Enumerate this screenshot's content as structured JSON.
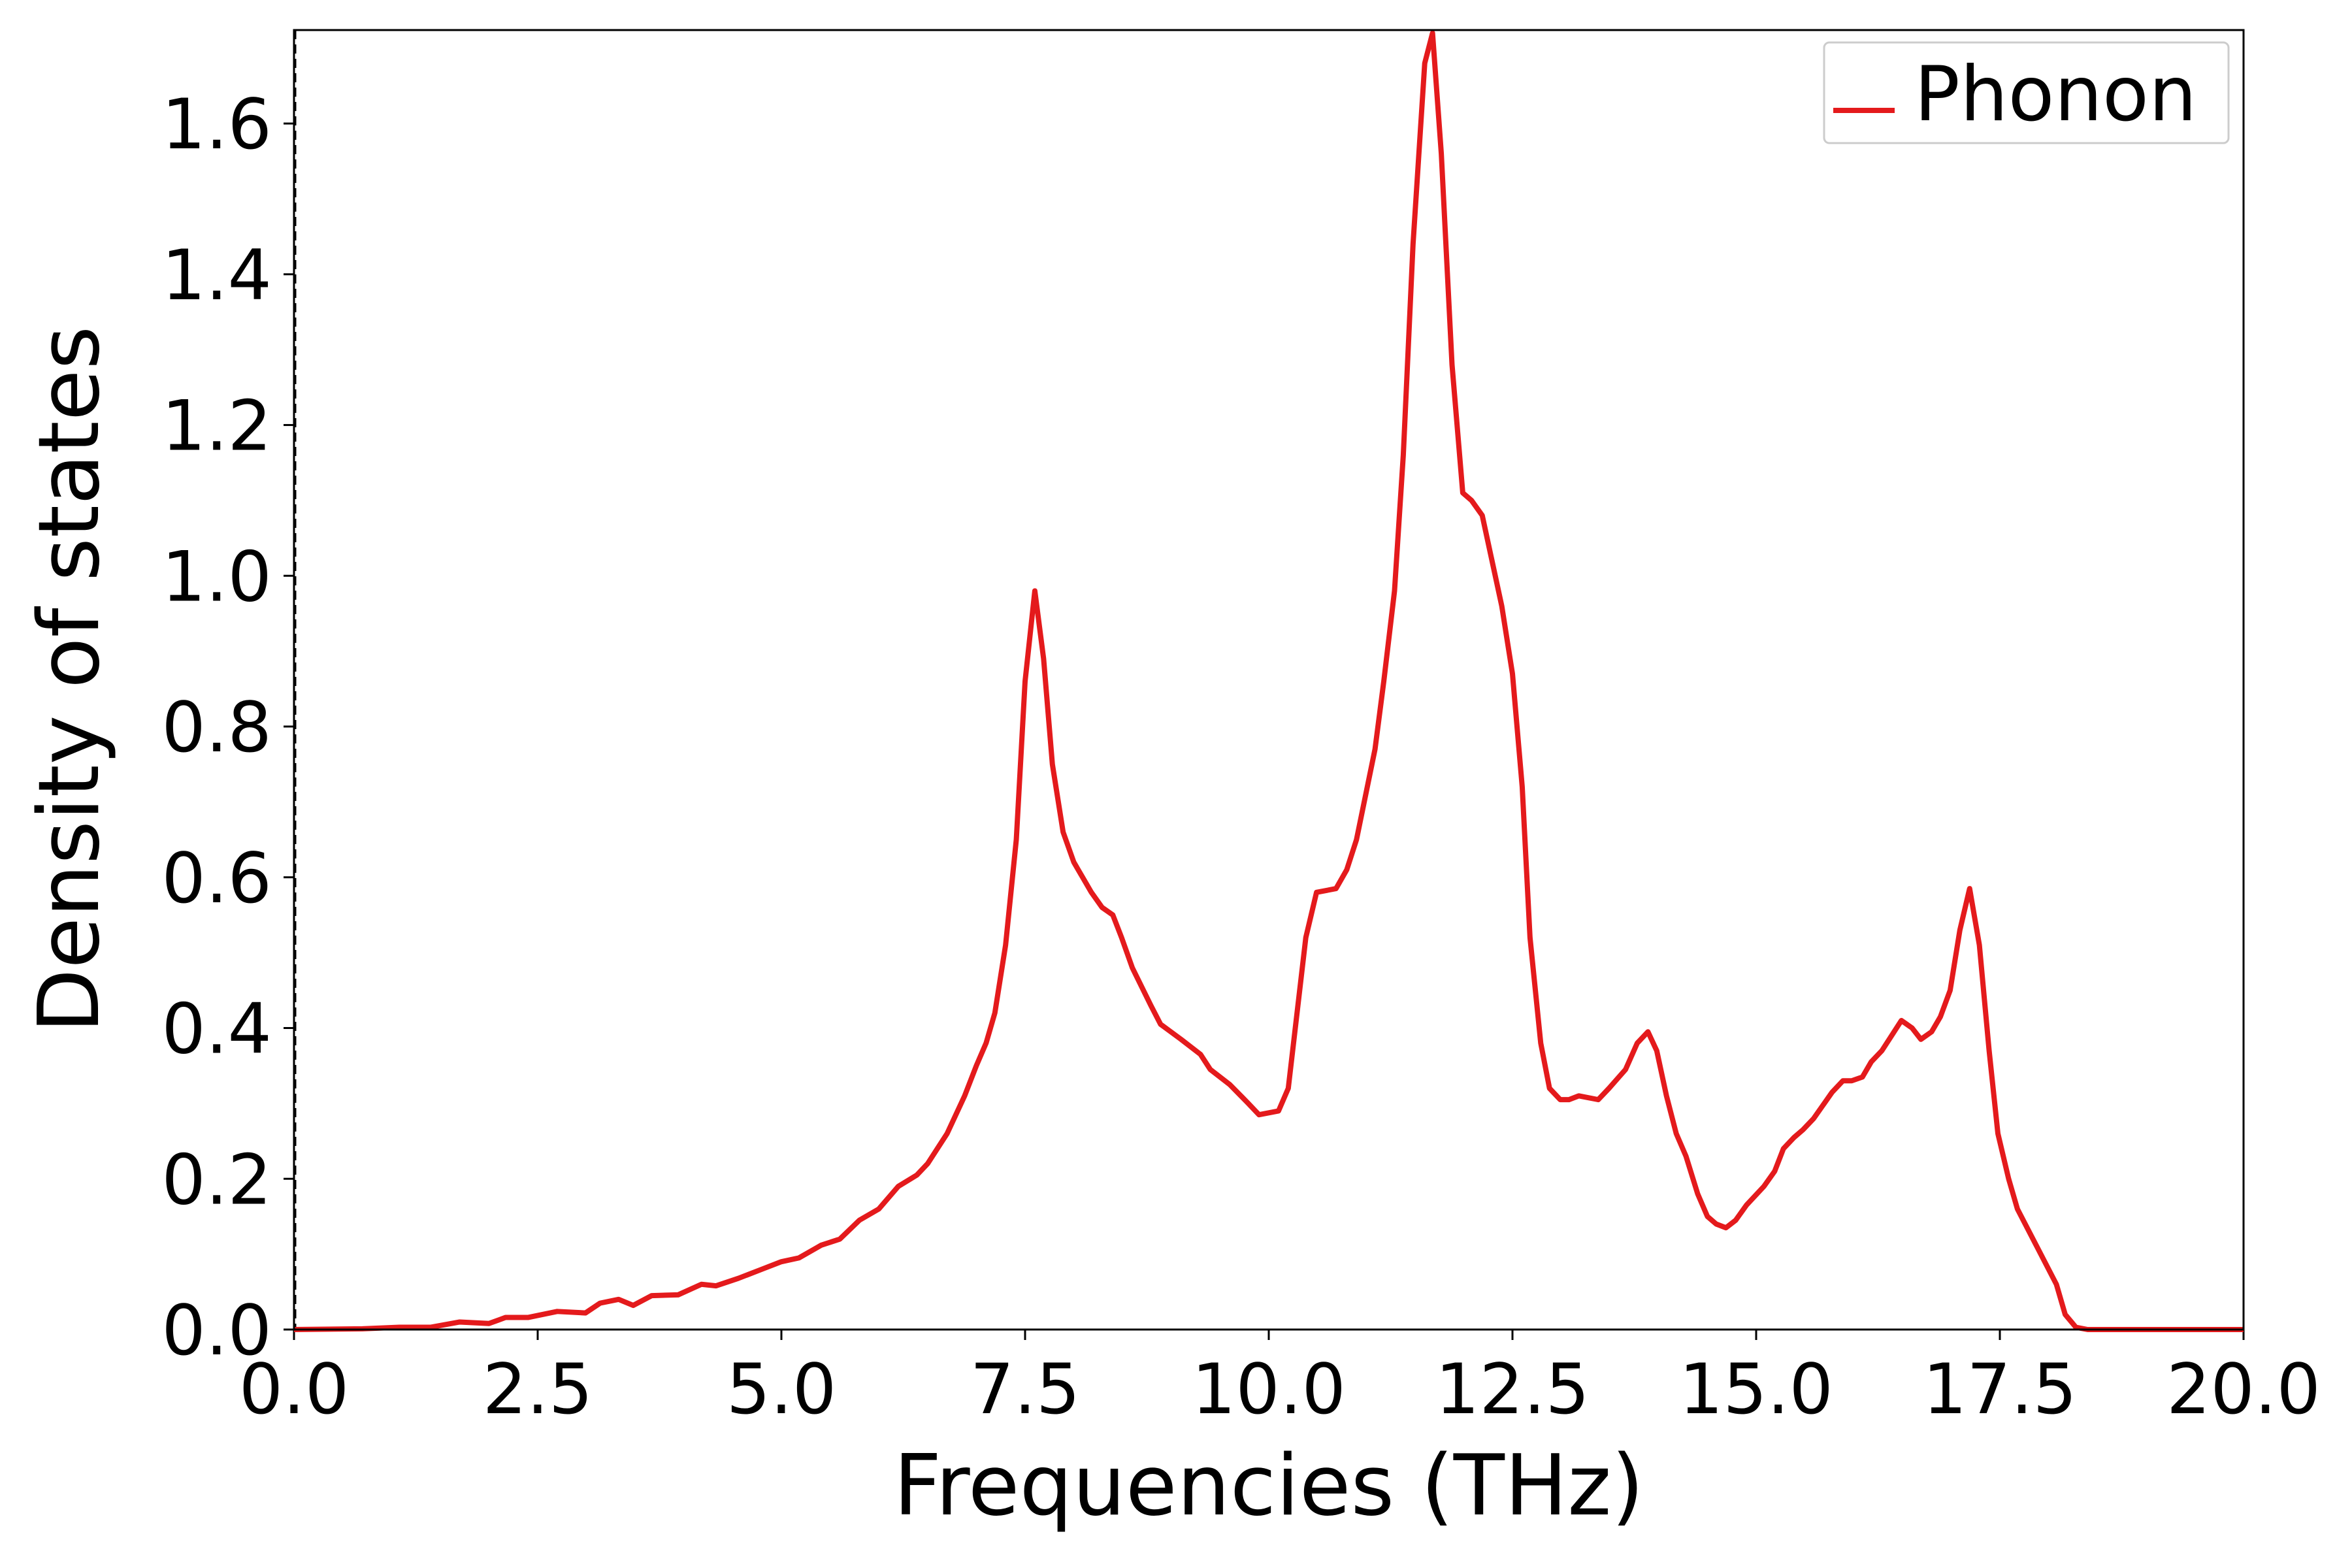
{
  "chart_data": {
    "type": "line",
    "xlabel": "Frequencies (THz)",
    "ylabel": "Density of states",
    "x": [
      0,
      0.7,
      1.08,
      1.4,
      1.7,
      2.0,
      2.17,
      2.4,
      2.7,
      2.99,
      3.14,
      3.33,
      3.48,
      3.67,
      3.94,
      4.18,
      4.33,
      4.56,
      4.8,
      5.0,
      5.18,
      5.41,
      5.6,
      5.8,
      6.0,
      6.2,
      6.39,
      6.5,
      6.7,
      6.88,
      7.0,
      7.1,
      7.19,
      7.3,
      7.41,
      7.5,
      7.6,
      7.69,
      7.78,
      7.89,
      8.0,
      8.09,
      8.18,
      8.29,
      8.4,
      8.49,
      8.6,
      8.79,
      8.89,
      9.1,
      9.3,
      9.4,
      9.6,
      9.79,
      9.9,
      10.1,
      10.2,
      10.38,
      10.49,
      10.69,
      10.8,
      10.9,
      11.09,
      11.18,
      11.29,
      11.38,
      11.48,
      11.6,
      11.68,
      11.77,
      11.88,
      11.99,
      12.08,
      12.19,
      12.39,
      12.5,
      12.6,
      12.68,
      12.79,
      12.88,
      12.99,
      13.08,
      13.18,
      13.38,
      13.49,
      13.66,
      13.78,
      13.89,
      13.98,
      14.08,
      14.18,
      14.28,
      14.4,
      14.5,
      14.59,
      14.69,
      14.79,
      14.9,
      15.08,
      15.19,
      15.28,
      15.39,
      15.48,
      15.59,
      15.78,
      15.89,
      15.98,
      16.09,
      16.18,
      16.29,
      16.39,
      16.49,
      16.6,
      16.69,
      16.8,
      16.89,
      16.99,
      17.09,
      17.19,
      17.29,
      17.39,
      17.48,
      17.59,
      17.68,
      17.88,
      18.08,
      18.17,
      18.28,
      18.4,
      20
    ],
    "series": [
      {
        "name": "Phonon",
        "color": "#e41a1c",
        "values": [
          0,
          0.001,
          0.003,
          0.003,
          0.01,
          0.008,
          0.016,
          0.016,
          0.024,
          0.022,
          0.035,
          0.04,
          0.032,
          0.045,
          0.046,
          0.06,
          0.058,
          0.068,
          0.08,
          0.09,
          0.095,
          0.112,
          0.12,
          0.145,
          0.16,
          0.19,
          0.205,
          0.22,
          0.26,
          0.31,
          0.35,
          0.38,
          0.42,
          0.51,
          0.65,
          0.86,
          0.98,
          0.89,
          0.75,
          0.66,
          0.62,
          0.6,
          0.58,
          0.56,
          0.55,
          0.52,
          0.48,
          0.43,
          0.405,
          0.385,
          0.365,
          0.345,
          0.325,
          0.3,
          0.285,
          0.29,
          0.32,
          0.52,
          0.58,
          0.585,
          0.61,
          0.65,
          0.77,
          0.86,
          0.98,
          1.16,
          1.44,
          1.68,
          1.72,
          1.56,
          1.28,
          1.11,
          1.1,
          1.08,
          0.96,
          0.87,
          0.72,
          0.52,
          0.38,
          0.32,
          0.305,
          0.305,
          0.31,
          0.305,
          0.32,
          0.345,
          0.38,
          0.395,
          0.37,
          0.31,
          0.26,
          0.23,
          0.18,
          0.15,
          0.14,
          0.135,
          0.145,
          0.165,
          0.19,
          0.21,
          0.24,
          0.255,
          0.265,
          0.28,
          0.315,
          0.33,
          0.33,
          0.335,
          0.355,
          0.37,
          0.39,
          0.41,
          0.4,
          0.385,
          0.395,
          0.415,
          0.45,
          0.53,
          0.585,
          0.51,
          0.37,
          0.26,
          0.2,
          0.16,
          0.11,
          0.06,
          0.02,
          0.003,
          0,
          0
        ]
      }
    ],
    "xlim": [
      0,
      20
    ],
    "ylim": [
      0,
      1.724
    ],
    "xticks": [
      {
        "value": 0,
        "label": "0.0"
      },
      {
        "value": 2.5,
        "label": "2.5"
      },
      {
        "value": 5,
        "label": "5.0"
      },
      {
        "value": 7.5,
        "label": "7.5"
      },
      {
        "value": 10,
        "label": "10.0"
      },
      {
        "value": 12.5,
        "label": "12.5"
      },
      {
        "value": 15,
        "label": "15.0"
      },
      {
        "value": 17.5,
        "label": "17.5"
      },
      {
        "value": 20,
        "label": "20.0"
      }
    ],
    "yticks": [
      {
        "value": 0,
        "label": "0.0"
      },
      {
        "value": 0.2,
        "label": "0.2"
      },
      {
        "value": 0.4,
        "label": "0.4"
      },
      {
        "value": 0.6,
        "label": "0.6"
      },
      {
        "value": 0.8,
        "label": "0.8"
      },
      {
        "value": 1.0,
        "label": "1.0"
      },
      {
        "value": 1.2,
        "label": "1.2"
      },
      {
        "value": 1.4,
        "label": "1.4"
      },
      {
        "value": 1.6,
        "label": "1.6"
      }
    ],
    "grid": false,
    "legend": "upper right"
  }
}
